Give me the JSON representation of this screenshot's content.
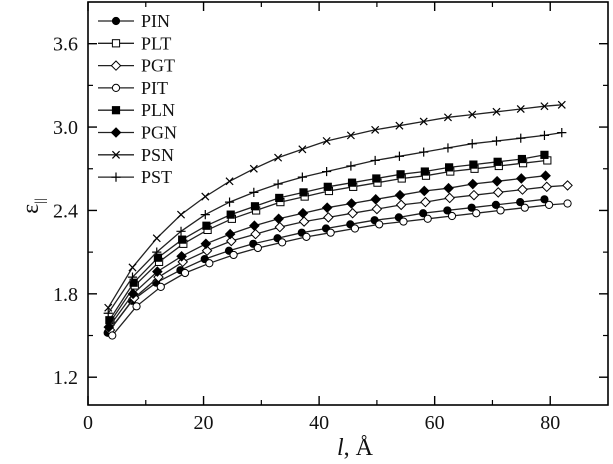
{
  "chart_data": {
    "type": "line",
    "title": "",
    "xlabel_italic": "l",
    "xlabel_rest": ", Å",
    "ylabel_main": "ε",
    "ylabel_sub": "||",
    "xlim": [
      0,
      90
    ],
    "ylim": [
      1.0,
      3.9
    ],
    "xticks": [
      0,
      20,
      40,
      60,
      80
    ],
    "yticks": [
      1.2,
      1.8,
      2.4,
      3.0,
      3.6
    ],
    "ytick_labels": [
      "1.2",
      "1.8",
      "2.4",
      "3.0",
      "3.6"
    ],
    "legend_position": "top-left",
    "grid": false,
    "series": [
      {
        "name": "PIN",
        "marker": "filled-circle",
        "x": [
          3.4,
          7.6,
          11.8,
          16,
          20.2,
          24.4,
          28.6,
          32.8,
          37,
          41.2,
          45.4,
          49.6,
          53.8,
          58,
          62.2,
          66.4,
          70.6,
          74.8,
          79
        ],
        "y": [
          1.52,
          1.75,
          1.88,
          1.97,
          2.05,
          2.11,
          2.16,
          2.2,
          2.24,
          2.27,
          2.3,
          2.33,
          2.35,
          2.38,
          2.4,
          2.42,
          2.44,
          2.46,
          2.48
        ]
      },
      {
        "name": "PLT",
        "marker": "open-square",
        "x": [
          3.9,
          8.1,
          12.3,
          16.5,
          20.7,
          24.9,
          29.1,
          33.3,
          37.5,
          41.7,
          45.9,
          50.1,
          54.3,
          58.5,
          62.7,
          66.9,
          71.1,
          75.3,
          79.5
        ],
        "y": [
          1.6,
          1.86,
          2.03,
          2.16,
          2.26,
          2.34,
          2.4,
          2.46,
          2.5,
          2.54,
          2.57,
          2.6,
          2.63,
          2.65,
          2.68,
          2.7,
          2.72,
          2.74,
          2.76
        ]
      },
      {
        "name": "PGT",
        "marker": "open-diamond",
        "x": [
          3.8,
          8,
          12.2,
          16.4,
          20.6,
          24.8,
          29,
          33.2,
          37.4,
          41.6,
          45.8,
          50,
          54.2,
          58.4,
          62.6,
          66.8,
          71,
          75.2,
          79.4,
          83
        ],
        "y": [
          1.54,
          1.77,
          1.92,
          2.03,
          2.11,
          2.18,
          2.23,
          2.28,
          2.32,
          2.35,
          2.38,
          2.41,
          2.44,
          2.46,
          2.49,
          2.51,
          2.53,
          2.55,
          2.57,
          2.58
        ]
      },
      {
        "name": "PIT",
        "marker": "open-circle",
        "x": [
          4.2,
          8.4,
          12.6,
          16.8,
          21,
          25.2,
          29.4,
          33.6,
          37.8,
          42,
          46.2,
          50.4,
          54.6,
          58.8,
          63,
          67.2,
          71.4,
          75.6,
          79.8,
          83
        ],
        "y": [
          1.5,
          1.71,
          1.85,
          1.95,
          2.02,
          2.08,
          2.13,
          2.17,
          2.21,
          2.24,
          2.27,
          2.3,
          2.32,
          2.34,
          2.36,
          2.38,
          2.4,
          2.42,
          2.44,
          2.45
        ]
      },
      {
        "name": "PLN",
        "marker": "filled-square",
        "x": [
          3.7,
          7.9,
          12.1,
          16.3,
          20.5,
          24.7,
          28.9,
          33.1,
          37.3,
          41.5,
          45.7,
          49.9,
          54.1,
          58.3,
          62.5,
          66.7,
          70.9,
          75.1,
          79
        ],
        "y": [
          1.61,
          1.88,
          2.06,
          2.19,
          2.29,
          2.37,
          2.43,
          2.49,
          2.53,
          2.57,
          2.6,
          2.63,
          2.66,
          2.68,
          2.71,
          2.73,
          2.75,
          2.77,
          2.8
        ]
      },
      {
        "name": "PGN",
        "marker": "filled-diamond",
        "x": [
          3.6,
          7.8,
          12,
          16.2,
          20.4,
          24.6,
          28.8,
          33,
          37.2,
          41.4,
          45.6,
          49.8,
          54,
          58.2,
          62.4,
          66.6,
          70.8,
          75,
          79.2
        ],
        "y": [
          1.56,
          1.8,
          1.96,
          2.07,
          2.16,
          2.23,
          2.29,
          2.34,
          2.38,
          2.42,
          2.45,
          2.48,
          2.51,
          2.54,
          2.56,
          2.59,
          2.61,
          2.63,
          2.65
        ]
      },
      {
        "name": "PSN",
        "marker": "cross-x",
        "x": [
          3.5,
          7.7,
          11.9,
          16.1,
          20.3,
          24.5,
          28.7,
          32.9,
          37.1,
          41.3,
          45.5,
          49.7,
          53.9,
          58.1,
          62.3,
          66.5,
          70.7,
          74.9,
          79,
          82
        ],
        "y": [
          1.7,
          1.99,
          2.2,
          2.37,
          2.5,
          2.61,
          2.7,
          2.78,
          2.84,
          2.9,
          2.94,
          2.98,
          3.01,
          3.04,
          3.07,
          3.09,
          3.11,
          3.13,
          3.15,
          3.16
        ]
      },
      {
        "name": "PST",
        "marker": "plus",
        "x": [
          3.5,
          7.7,
          11.9,
          16.1,
          20.3,
          24.5,
          28.7,
          32.9,
          37.1,
          41.3,
          45.5,
          49.7,
          53.9,
          58.1,
          62.3,
          66.5,
          70.7,
          74.9,
          79,
          82
        ],
        "y": [
          1.66,
          1.92,
          2.1,
          2.25,
          2.37,
          2.46,
          2.53,
          2.59,
          2.64,
          2.68,
          2.72,
          2.76,
          2.79,
          2.82,
          2.85,
          2.88,
          2.9,
          2.92,
          2.94,
          2.96
        ]
      }
    ]
  }
}
